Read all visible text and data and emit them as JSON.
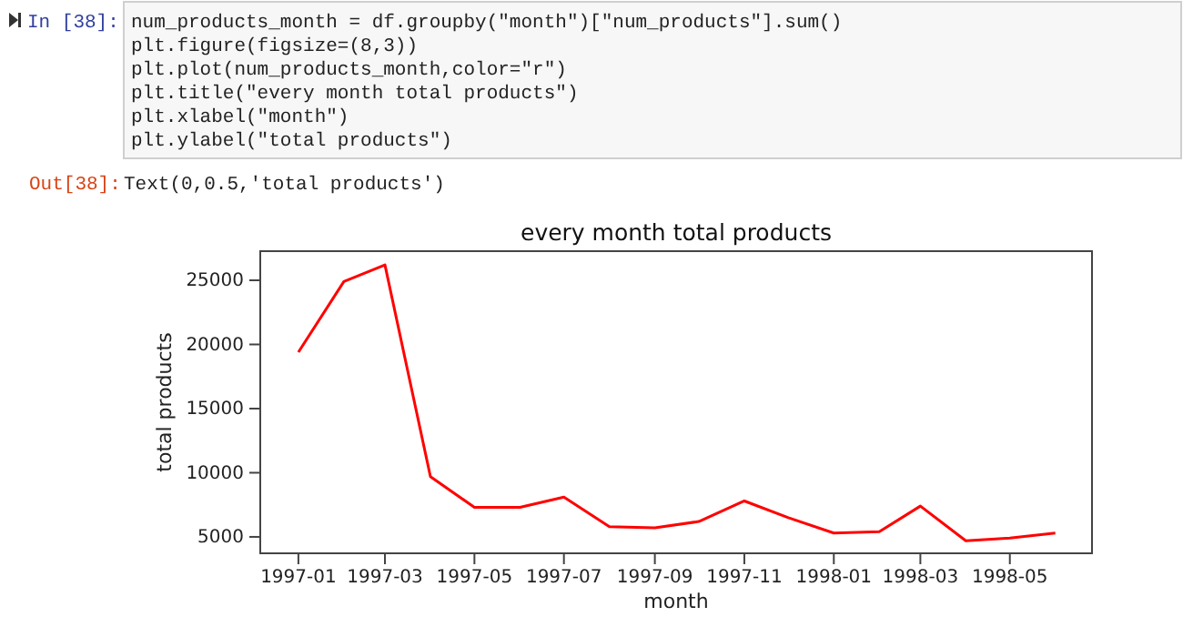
{
  "chart_data": {
    "type": "line",
    "title": "every month total products",
    "xlabel": "month",
    "ylabel": "total products",
    "x": [
      "1997-01",
      "1997-02",
      "1997-03",
      "1997-04",
      "1997-05",
      "1997-06",
      "1997-07",
      "1997-08",
      "1997-09",
      "1997-10",
      "1997-11",
      "1997-12",
      "1998-01",
      "1998-02",
      "1998-03",
      "1998-04",
      "1998-05",
      "1998-06"
    ],
    "series": [
      {
        "color": "#ff0000",
        "values": [
          19400,
          24900,
          26200,
          9700,
          7300,
          7300,
          8100,
          5800,
          5700,
          6200,
          7800,
          6500,
          5300,
          5400,
          7400,
          4700,
          4900,
          5300
        ]
      }
    ],
    "xlim": [
      "1996-12-06",
      "1998-06-26"
    ],
    "xticks": [
      "1997-01",
      "1997-03",
      "1997-05",
      "1997-07",
      "1997-09",
      "1997-11",
      "1998-01",
      "1998-03",
      "1998-05"
    ],
    "ylim": [
      3720,
      27270
    ],
    "yticks": [
      5000,
      10000,
      15000,
      20000,
      25000
    ],
    "grid": false,
    "marker": "none",
    "line_style": "solid",
    "annotations": [
      "In [38]:",
      "num_products_month = df.groupby(\"month\")[\"num_products\"].sum()",
      "plt.figure(figsize=(8,3))",
      "plt.plot(num_products_month,color=\"r\")",
      "plt.title(\"every month total products\")",
      "plt.xlabel(\"month\")",
      "plt.ylabel(\"total products\")",
      "Out[38]:",
      "Text(0,0.5,'total products')"
    ]
  }
}
